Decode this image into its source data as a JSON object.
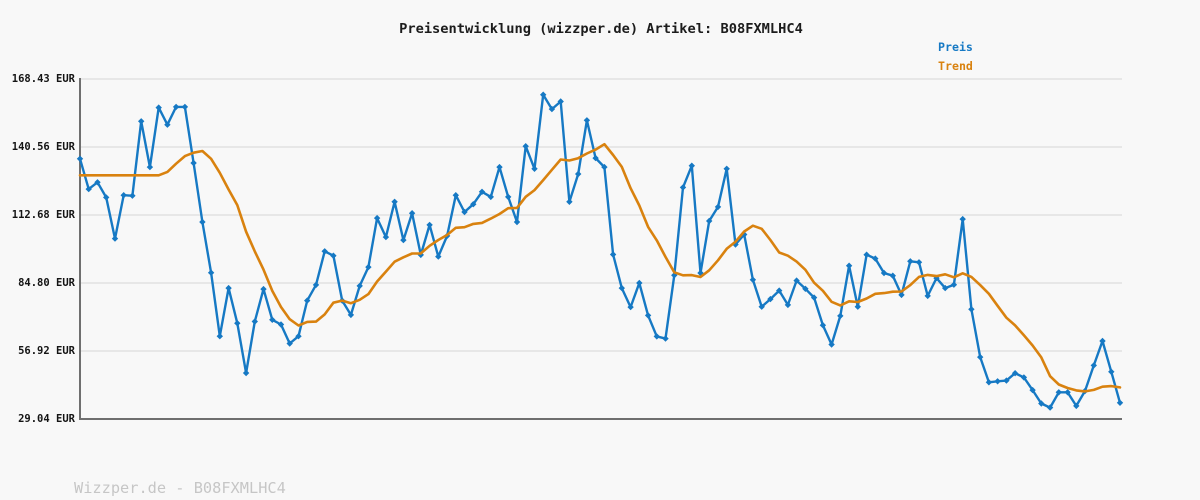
{
  "title": "Preisentwicklung (wizzper.de) Artikel: B08FXMLHC4",
  "footer": "Wizzper.de - B08FXMLHC4",
  "legend": {
    "items": [
      {
        "label": "Preis",
        "color": "#1679c4"
      },
      {
        "label": "Trend",
        "color": "#d9820f"
      }
    ]
  },
  "y_axis": {
    "tick_labels": [
      "168.43 EUR",
      "140.56 EUR",
      "112.68 EUR",
      "84.80 EUR",
      "56.92 EUR",
      "29.04 EUR"
    ],
    "tick_values": [
      168.43,
      140.56,
      112.68,
      84.8,
      56.92,
      29.04
    ],
    "unit": "EUR"
  },
  "colors": {
    "background": "#f8f8f8",
    "gridline": "#e7e7e7",
    "spine": "#6f6f6f",
    "title_text": "#1c1c1c",
    "tick_text": "#141414",
    "footer_text": "#c6c6c6"
  },
  "chart_data": {
    "type": "line",
    "title": "Preisentwicklung (wizzper.de) Artikel: B08FXMLHC4",
    "xlabel": "",
    "ylabel": "EUR",
    "ylim": [
      29.04,
      168.43
    ],
    "grid": true,
    "legend_position": "top-right",
    "x_tick_labels_visible": false,
    "series": [
      {
        "name": "Preis",
        "color": "#1679c4",
        "marker": "diamond",
        "line_width": 2.4,
        "values": [
          135.7,
          123.3,
          126.1,
          119.9,
          103.0,
          120.8,
          120.6,
          151.1,
          132.3,
          156.7,
          149.7,
          157.0,
          157.0,
          134.0,
          109.8,
          89.0,
          63.0,
          82.7,
          68.3,
          47.9,
          69.0,
          82.3,
          69.7,
          67.8,
          60.0,
          63.0,
          77.6,
          84.0,
          97.8,
          96.0,
          77.6,
          71.7,
          83.6,
          91.3,
          111.4,
          103.6,
          118.1,
          102.4,
          113.4,
          96.3,
          108.6,
          95.6,
          104.1,
          120.8,
          113.9,
          117.1,
          122.2,
          120.1,
          132.3,
          120.1,
          109.8,
          140.9,
          131.6,
          162.0,
          156.1,
          159.2,
          118.1,
          129.5,
          151.5,
          136.0,
          132.3,
          96.5,
          82.7,
          74.9,
          84.8,
          71.5,
          62.9,
          62.0,
          88.0,
          124.0,
          132.9,
          88.9,
          110.2,
          116.0,
          131.6,
          100.6,
          104.7,
          86.1,
          75.1,
          78.2,
          81.7,
          75.8,
          85.8,
          82.4,
          78.8,
          67.5,
          59.6,
          71.3,
          91.9,
          75.1,
          96.4,
          94.8,
          88.9,
          87.8,
          79.9,
          93.7,
          93.3,
          79.5,
          86.8,
          82.7,
          84.1,
          111.0,
          74.0,
          54.4,
          44.1,
          44.5,
          44.8,
          47.8,
          46.1,
          40.9,
          35.4,
          33.7,
          40.0,
          40.0,
          34.4,
          40.5,
          51.0,
          61.0,
          48.4,
          35.7
        ]
      },
      {
        "name": "Trend",
        "color": "#d9820f",
        "marker": "none",
        "line_width": 2.6,
        "values": [
          128.95,
          128.95,
          128.95,
          128.95,
          128.95,
          128.95,
          128.95,
          128.95,
          128.95,
          128.95,
          130.35,
          133.72,
          136.81,
          138.22,
          138.9,
          135.72,
          129.96,
          123.12,
          116.72,
          105.84,
          97.77,
          90.3,
          81.57,
          74.95,
          69.97,
          67.37,
          68.83,
          68.96,
          71.91,
          76.72,
          77.58,
          76.52,
          77.91,
          80.26,
          85.4,
          89.46,
          93.51,
          95.35,
          96.91,
          96.94,
          100.04,
          102.43,
          104.48,
          107.43,
          107.68,
          109.03,
          109.44,
          111.21,
          113.1,
          115.48,
          115.6,
          120.13,
          122.88,
          127.0,
          131.22,
          135.43,
          135.02,
          135.96,
          137.88,
          139.47,
          141.72,
          137.28,
          132.39,
          123.68,
          116.55,
          107.78,
          102.26,
          95.51,
          89.16,
          87.96,
          88.02,
          87.26,
          90.01,
          94.12,
          98.8,
          101.71,
          105.89,
          108.3,
          107.01,
          102.43,
          97.31,
          96.0,
          93.56,
          90.2,
          84.92,
          81.61,
          77.1,
          75.62,
          77.3,
          76.99,
          78.46,
          80.36,
          80.67,
          81.21,
          81.32,
          83.94,
          87.31,
          88.13,
          87.62,
          88.38,
          87.15,
          88.77,
          87.28,
          83.94,
          80.36,
          75.44,
          70.59,
          67.42,
          63.35,
          59.17,
          54.3,
          46.57,
          43.17,
          41.73,
          40.76,
          40.36,
          40.98,
          42.3,
          42.53,
          42.01
        ]
      }
    ]
  }
}
